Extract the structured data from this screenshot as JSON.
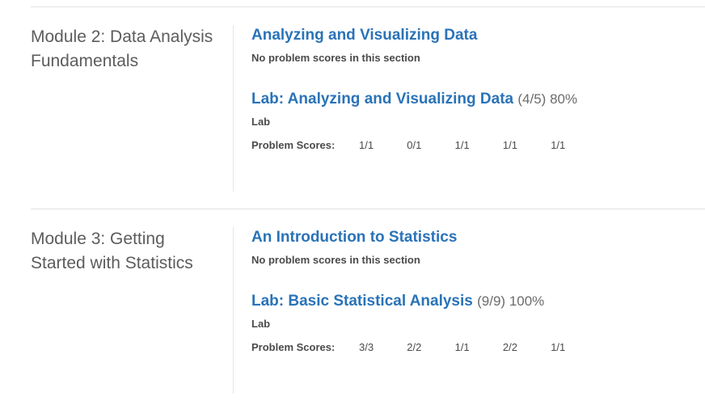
{
  "chapters": [
    {
      "title": "Module 2: Data Analysis Fundamentals",
      "sections": [
        {
          "title": "Analyzing and Visualizing Data",
          "score": "",
          "note": "No problem scores in this section"
        },
        {
          "title": "Lab: Analyzing and Visualizing Data",
          "score": "(4/5) 80%",
          "note": "Lab",
          "scores_label": "Problem Scores:",
          "scores": [
            "1/1",
            "0/1",
            "1/1",
            "1/1",
            "1/1"
          ]
        }
      ]
    },
    {
      "title": "Module 3: Getting Started with Statistics",
      "sections": [
        {
          "title": "An Introduction to Statistics",
          "score": "",
          "note": "No problem scores in this section"
        },
        {
          "title": "Lab: Basic Statistical Analysis",
          "score": "(9/9) 100%",
          "note": "Lab",
          "scores_label": "Problem Scores:",
          "scores": [
            "3/3",
            "2/2",
            "1/1",
            "2/2",
            "1/1"
          ]
        }
      ]
    }
  ]
}
